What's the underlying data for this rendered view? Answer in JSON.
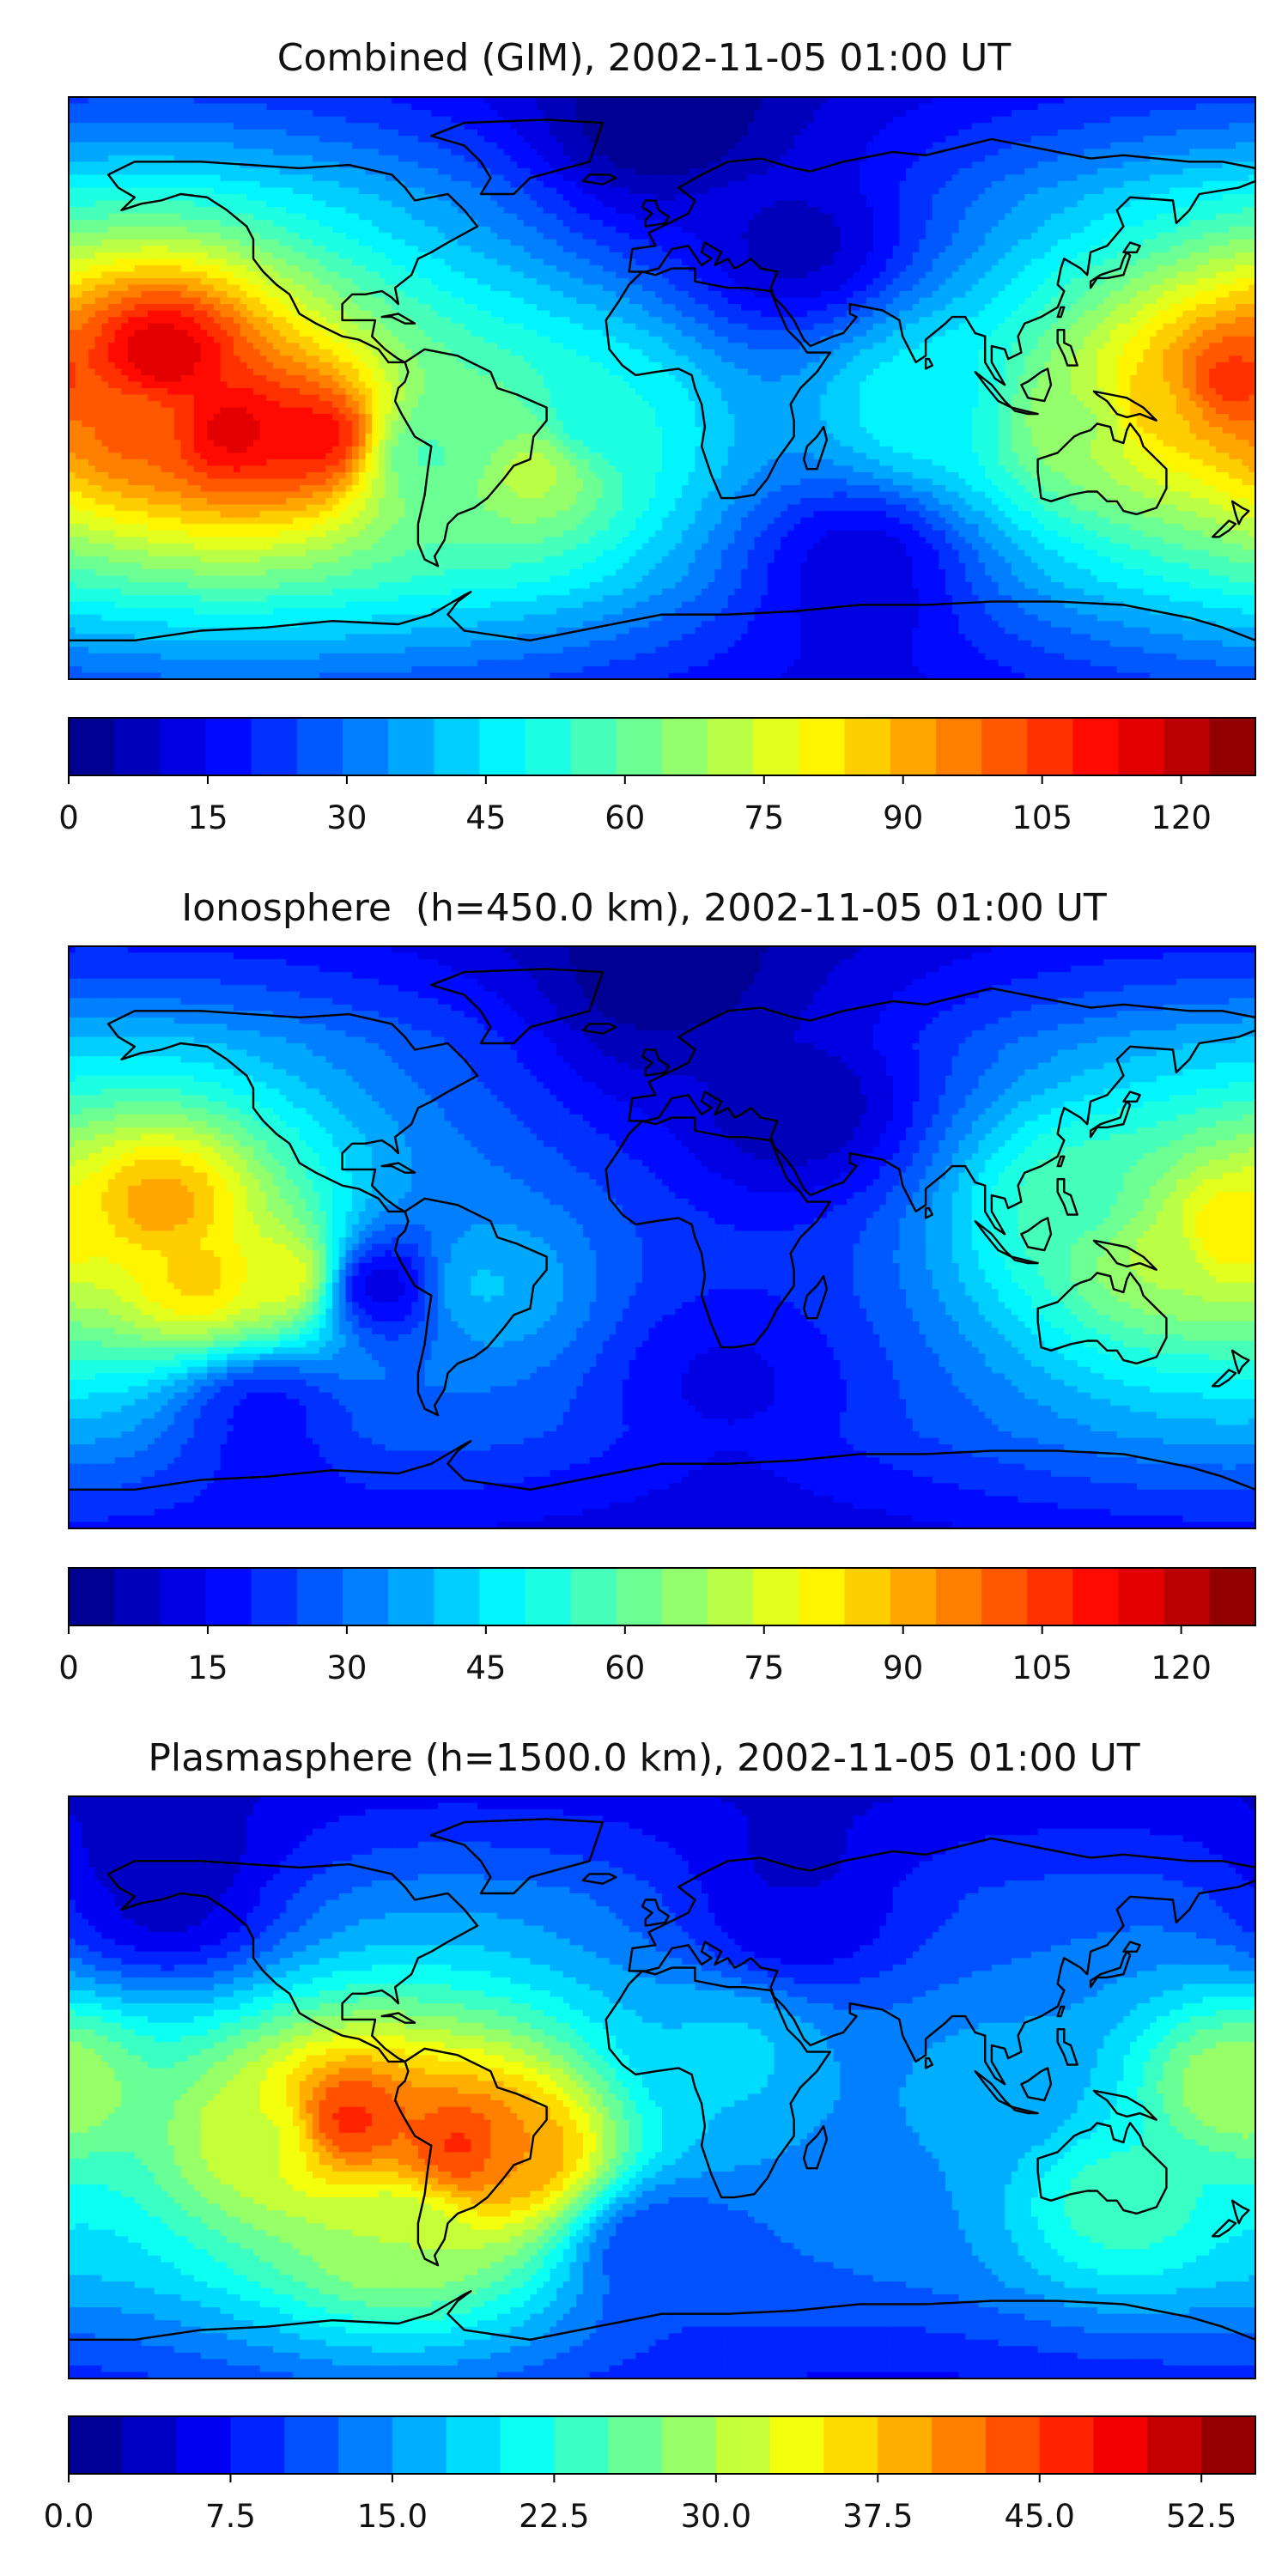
{
  "chart_data": [
    {
      "type": "heatmap",
      "title": "Combined (GIM), 2002-11-05 01:00 UT",
      "xlabel": "",
      "ylabel": "",
      "colorbar": {
        "vmin": 0,
        "vmax": 128,
        "levels": 26,
        "ticks": [
          "0",
          "15",
          "30",
          "45",
          "60",
          "75",
          "90",
          "105",
          "120"
        ],
        "tick_values": [
          0,
          15,
          30,
          45,
          60,
          75,
          90,
          105,
          120
        ]
      },
      "hotspots": [
        {
          "lon": -152,
          "lat": 10,
          "value": 118
        },
        {
          "lon": -130,
          "lat": -13,
          "value": 116
        },
        {
          "lon": -105,
          "lat": -15,
          "value": 112
        },
        {
          "lon": -160,
          "lat": -12,
          "value": 100
        },
        {
          "lon": 172,
          "lat": 2,
          "value": 106
        },
        {
          "lon": 150,
          "lat": -5,
          "value": 88
        },
        {
          "lon": 128,
          "lat": -10,
          "value": 68
        },
        {
          "lon": -55,
          "lat": -15,
          "value": 62
        },
        {
          "lon": -40,
          "lat": -25,
          "value": 72
        },
        {
          "lon": -70,
          "lat": -20,
          "value": 58
        },
        {
          "lon": -20,
          "lat": -10,
          "value": 50
        },
        {
          "lon": 80,
          "lat": -5,
          "value": 48
        },
        {
          "lon": 40,
          "lat": 45,
          "value": 8
        },
        {
          "lon": 0,
          "lat": 75,
          "value": 6
        },
        {
          "lon": 60,
          "lat": -55,
          "value": 12
        }
      ]
    },
    {
      "type": "heatmap",
      "title": "Ionosphere  (h=450.0 km), 2002-11-05 01:00 UT",
      "xlabel": "",
      "ylabel": "",
      "colorbar": {
        "vmin": 0,
        "vmax": 128,
        "levels": 26,
        "ticks": [
          "0",
          "15",
          "30",
          "45",
          "60",
          "75",
          "90",
          "105",
          "120"
        ],
        "tick_values": [
          0,
          15,
          30,
          45,
          60,
          75,
          90,
          105,
          120
        ]
      },
      "hotspots": [
        {
          "lon": -152,
          "lat": 10,
          "value": 92
        },
        {
          "lon": -140,
          "lat": -12,
          "value": 86
        },
        {
          "lon": -115,
          "lat": -12,
          "value": 78
        },
        {
          "lon": -85,
          "lat": -15,
          "value": 12
        },
        {
          "lon": 172,
          "lat": 2,
          "value": 84
        },
        {
          "lon": 150,
          "lat": -5,
          "value": 70
        },
        {
          "lon": 128,
          "lat": 10,
          "value": 58
        },
        {
          "lon": -55,
          "lat": -15,
          "value": 40
        },
        {
          "lon": 40,
          "lat": 40,
          "value": 6
        },
        {
          "lon": 0,
          "lat": 70,
          "value": 6
        },
        {
          "lon": 20,
          "lat": -45,
          "value": 14
        },
        {
          "lon": -120,
          "lat": -55,
          "value": 18
        }
      ]
    },
    {
      "type": "heatmap",
      "title": "Plasmasphere (h=1500.0 km), 2002-11-05 01:00 UT",
      "xlabel": "",
      "ylabel": "",
      "colorbar": {
        "vmin": 0,
        "vmax": 55,
        "levels": 22,
        "ticks": [
          "0.0",
          "7.5",
          "15.0",
          "22.5",
          "30.0",
          "37.5",
          "45.0",
          "52.5"
        ],
        "tick_values": [
          0,
          7.5,
          15,
          22.5,
          30,
          37.5,
          45,
          52.5
        ]
      },
      "hotspots": [
        {
          "lon": -95,
          "lat": -10,
          "value": 46
        },
        {
          "lon": -60,
          "lat": -18,
          "value": 46
        },
        {
          "lon": -45,
          "lat": -20,
          "value": 40
        },
        {
          "lon": -120,
          "lat": -15,
          "value": 32
        },
        {
          "lon": -80,
          "lat": -45,
          "value": 30
        },
        {
          "lon": 175,
          "lat": 0,
          "value": 30
        },
        {
          "lon": 140,
          "lat": -35,
          "value": 24
        },
        {
          "lon": 20,
          "lat": 10,
          "value": 18
        },
        {
          "lon": 100,
          "lat": 0,
          "value": 16
        },
        {
          "lon": 40,
          "lat": 55,
          "value": 5
        },
        {
          "lon": -150,
          "lat": 60,
          "value": 4
        },
        {
          "lon": 0,
          "lat": -50,
          "value": 10
        }
      ]
    }
  ]
}
